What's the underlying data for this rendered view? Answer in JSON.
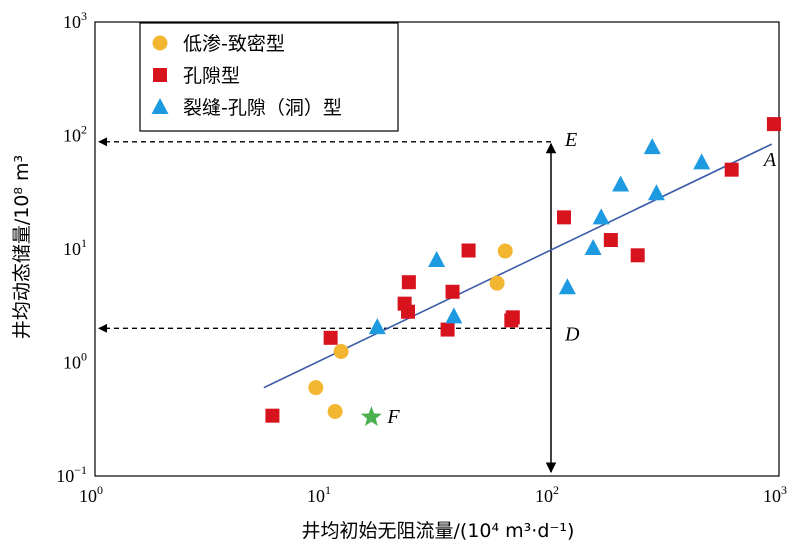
{
  "chart_data": {
    "type": "scatter",
    "xscale": "log",
    "yscale": "log",
    "xlim": [
      1,
      1000
    ],
    "ylim": [
      0.1,
      1000
    ],
    "xticks": [
      {
        "base": "10",
        "exp": "0"
      },
      {
        "base": "10",
        "exp": "1"
      },
      {
        "base": "10",
        "exp": "2"
      },
      {
        "base": "10",
        "exp": "3"
      }
    ],
    "yticks": [
      {
        "base": "10",
        "exp": "−1"
      },
      {
        "base": "10",
        "exp": "0"
      },
      {
        "base": "10",
        "exp": "1"
      },
      {
        "base": "10",
        "exp": "2"
      },
      {
        "base": "10",
        "exp": "3"
      }
    ],
    "xlabel": "井均初始无阻流量/(10⁴ m³·d⁻¹)",
    "ylabel": "井均动态储量/10⁸ m³",
    "legend_position": "top-left",
    "series": [
      {
        "name": "低渗-致密型",
        "marker": "circle",
        "color": "#F2B630",
        "points": [
          [
            9.3,
            0.6
          ],
          [
            11.3,
            0.37
          ],
          [
            12.0,
            1.25
          ],
          [
            58,
            5.0
          ],
          [
            63,
            9.6
          ]
        ]
      },
      {
        "name": "孔隙型",
        "marker": "square",
        "color": "#D7131D",
        "points": [
          [
            6.0,
            0.34
          ],
          [
            10.8,
            1.65
          ],
          [
            22.8,
            3.3
          ],
          [
            23.6,
            2.8
          ],
          [
            23.8,
            5.1
          ],
          [
            35.2,
            1.95
          ],
          [
            37.0,
            4.2
          ],
          [
            43.5,
            9.7
          ],
          [
            67,
            2.35
          ],
          [
            68,
            2.5
          ],
          [
            114,
            19
          ],
          [
            183,
            12
          ],
          [
            240,
            8.8
          ],
          [
            620,
            50
          ],
          [
            950,
            126
          ]
        ]
      },
      {
        "name": "裂缝-孔隙（洞）型",
        "marker": "triangle",
        "color": "#1E9AE0",
        "points": [
          [
            17.3,
            2.05
          ],
          [
            31.5,
            8.0
          ],
          [
            37.5,
            2.55
          ],
          [
            118,
            4.6
          ],
          [
            153,
            10.2
          ],
          [
            166,
            19
          ],
          [
            202,
            37
          ],
          [
            278,
            79
          ],
          [
            290,
            31
          ],
          [
            458,
            58
          ]
        ]
      }
    ],
    "special_point": {
      "label": "F",
      "x": 16.3,
      "y": 0.33,
      "marker": "star",
      "color": "#4CAF50"
    },
    "trend_line": {
      "color": "#3B5BA9",
      "from": [
        5.5,
        0.6
      ],
      "to": [
        930,
        84
      ]
    },
    "annotations": [
      {
        "label": "A",
        "x": 930,
        "y": 84
      },
      {
        "label": "E",
        "x": 100,
        "y": 88
      },
      {
        "label": "D",
        "x": 100,
        "y": 2.0
      },
      {
        "label": "F",
        "x": 16.3,
        "y": 0.33
      }
    ],
    "reference_lines": {
      "vertical_x": 100,
      "vertical_from_y": 0.1,
      "vertical_to_y": 88,
      "horizontal": [
        {
          "y": 88,
          "from_x": 100,
          "to_x": 1
        },
        {
          "y": 2.0,
          "from_x": 100,
          "to_x": 1
        }
      ]
    }
  }
}
